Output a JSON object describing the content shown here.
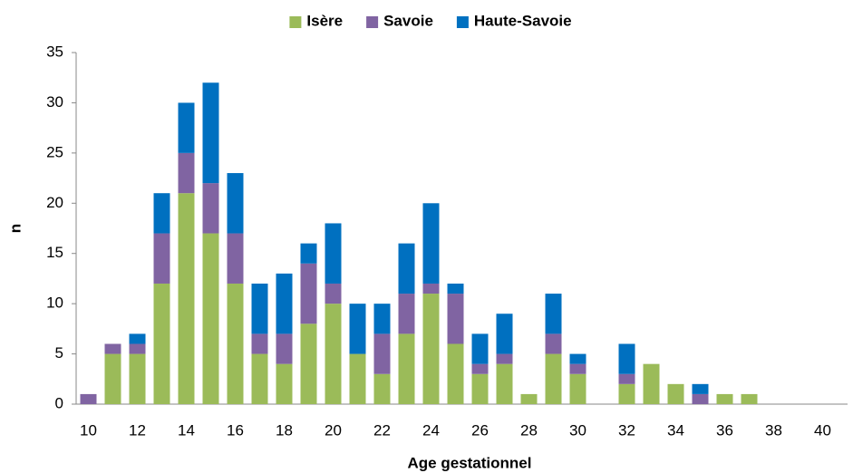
{
  "chart_data": {
    "type": "stacked_bar",
    "x_label": "Age gestationnel",
    "y_label": "n",
    "categories": [
      10,
      null,
      12,
      null,
      14,
      null,
      16,
      null,
      18,
      null,
      20,
      null,
      22,
      null,
      24,
      null,
      26,
      null,
      28,
      null,
      30,
      null,
      32,
      null,
      34,
      null,
      36,
      null,
      38,
      null,
      40
    ],
    "series": [
      {
        "name": "Isère",
        "color": "#9bbb59",
        "values": [
          0,
          5,
          5,
          12,
          21,
          17,
          12,
          5,
          4,
          8,
          10,
          5,
          3,
          7,
          11,
          6,
          3,
          4,
          1,
          5,
          3,
          0,
          2,
          4,
          2,
          0,
          1,
          1,
          0,
          0,
          0
        ]
      },
      {
        "name": "Savoie",
        "color": "#8064a2",
        "values": [
          1,
          1,
          1,
          5,
          4,
          5,
          5,
          2,
          3,
          6,
          2,
          0,
          4,
          4,
          1,
          5,
          1,
          1,
          0,
          2,
          1,
          0,
          1,
          0,
          0,
          1,
          0,
          0,
          0,
          0,
          0
        ]
      },
      {
        "name": "Haute-Savoie",
        "color": "#0070c0",
        "values": [
          0,
          0,
          1,
          4,
          5,
          10,
          6,
          5,
          6,
          2,
          6,
          5,
          3,
          5,
          8,
          1,
          3,
          4,
          0,
          4,
          1,
          0,
          3,
          0,
          0,
          1,
          0,
          0,
          0,
          0,
          0
        ]
      }
    ],
    "ylim": [
      0,
      35
    ],
    "yticks": [
      0,
      5,
      10,
      15,
      20,
      25,
      30,
      35
    ],
    "grid": false,
    "legend": "top"
  }
}
